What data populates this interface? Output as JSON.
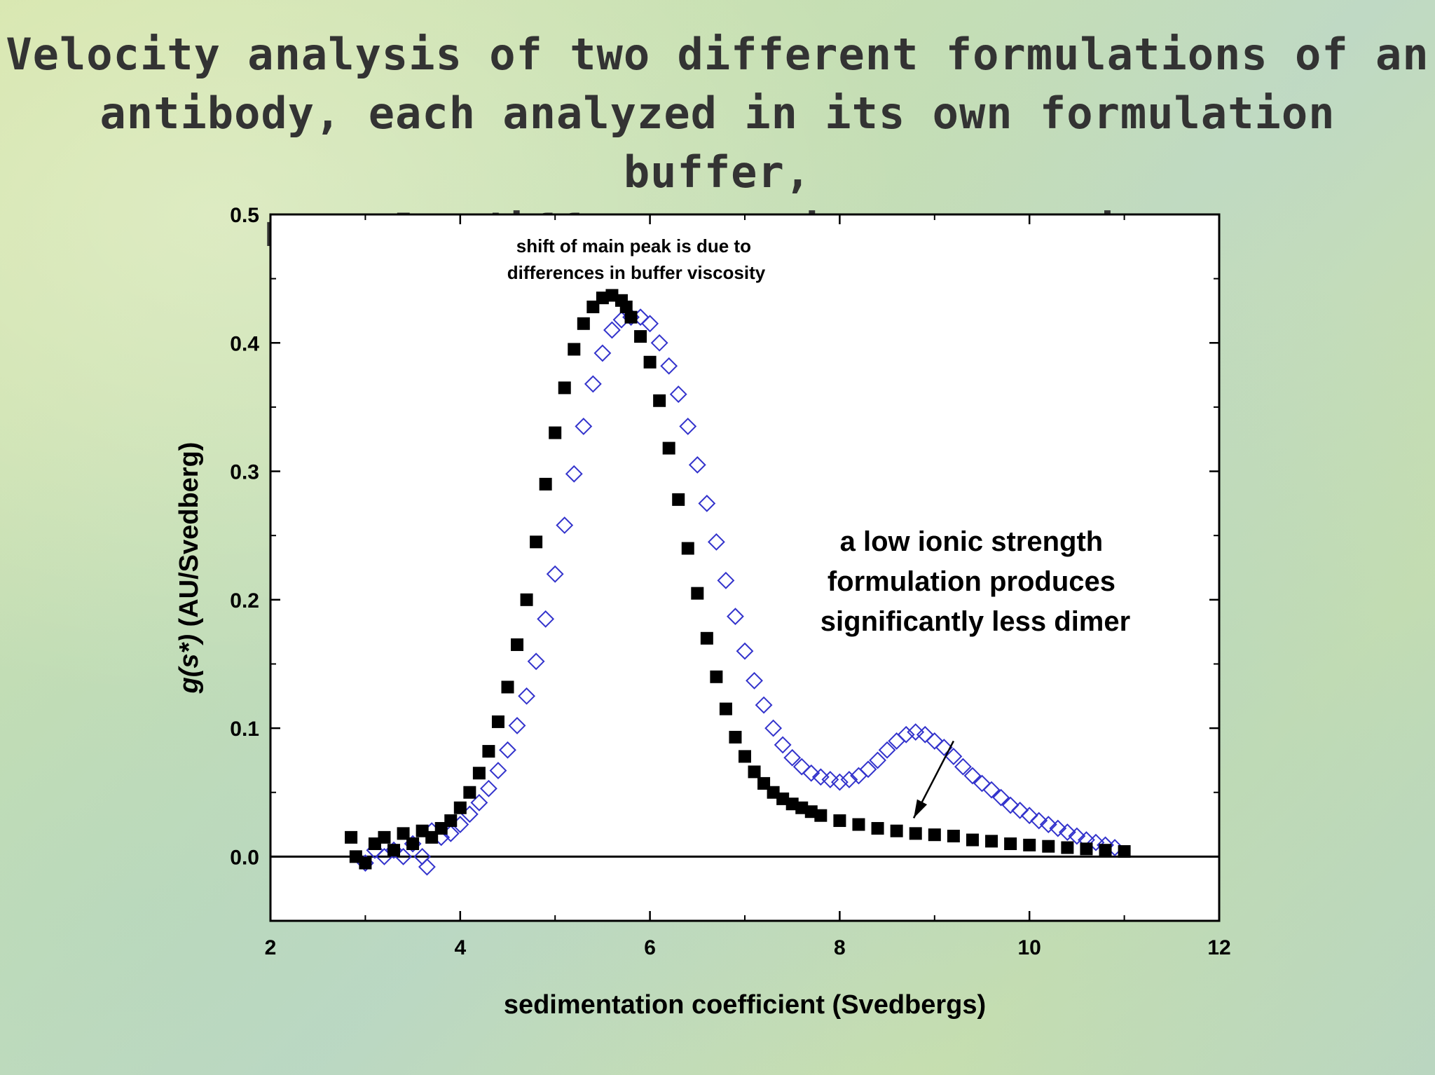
{
  "slide": {
    "title_lines": [
      "Velocity analysis of two different formulations of an",
      "antibody, each analyzed in its own formulation buffer,",
      "reveals differences in aggregation"
    ]
  },
  "chart_data": {
    "type": "scatter",
    "xlabel": "sedimentation coefficient (Svedbergs)",
    "ylabel_parts": [
      "g(s*)",
      " (AU/Svedberg)"
    ],
    "xlim": [
      2,
      12
    ],
    "ylim": [
      -0.05,
      0.5
    ],
    "x_ticks": [
      "2",
      "4",
      "6",
      "8",
      "10",
      "12"
    ],
    "y_ticks": [
      "0.0",
      "0.1",
      "0.2",
      "0.3",
      "0.4",
      "0.5"
    ],
    "x_tick_values": [
      2,
      4,
      6,
      8,
      10,
      12
    ],
    "y_tick_values": [
      0,
      0.1,
      0.2,
      0.3,
      0.4,
      0.5
    ],
    "zero_line": 0,
    "colors": {
      "filled_series": "#000000",
      "open_series": "#3333cc"
    },
    "annotations": {
      "peak_note": [
        "shift of main peak is due to",
        "differences in buffer viscosity"
      ],
      "dimer_note": [
        "a low ionic strength",
        "formulation produces",
        "significantly less dimer"
      ],
      "arrow": {
        "from": [
          9.2,
          0.09
        ],
        "to": [
          8.78,
          0.03
        ]
      }
    },
    "series": [
      {
        "marker": "filled-square",
        "x": [
          2.85,
          2.9,
          3.0,
          3.1,
          3.2,
          3.3,
          3.4,
          3.5,
          3.6,
          3.7,
          3.8,
          3.9,
          4.0,
          4.1,
          4.2,
          4.3,
          4.4,
          4.5,
          4.6,
          4.7,
          4.8,
          4.9,
          5.0,
          5.1,
          5.2,
          5.3,
          5.4,
          5.5,
          5.6,
          5.7,
          5.75,
          5.8,
          5.9,
          6.0,
          6.1,
          6.2,
          6.3,
          6.4,
          6.5,
          6.6,
          6.7,
          6.8,
          6.9,
          7.0,
          7.1,
          7.2,
          7.3,
          7.4,
          7.5,
          7.6,
          7.7,
          7.8,
          8.0,
          8.2,
          8.4,
          8.6,
          8.8,
          9.0,
          9.2,
          9.4,
          9.6,
          9.8,
          10.0,
          10.2,
          10.4,
          10.6,
          10.8,
          11.0
        ],
        "y": [
          0.015,
          0.0,
          -0.005,
          0.01,
          0.015,
          0.005,
          0.018,
          0.01,
          0.02,
          0.015,
          0.022,
          0.028,
          0.038,
          0.05,
          0.065,
          0.082,
          0.105,
          0.132,
          0.165,
          0.2,
          0.245,
          0.29,
          0.33,
          0.365,
          0.395,
          0.415,
          0.428,
          0.435,
          0.437,
          0.433,
          0.428,
          0.42,
          0.405,
          0.385,
          0.355,
          0.318,
          0.278,
          0.24,
          0.205,
          0.17,
          0.14,
          0.115,
          0.093,
          0.078,
          0.066,
          0.057,
          0.05,
          0.045,
          0.041,
          0.038,
          0.035,
          0.032,
          0.028,
          0.025,
          0.022,
          0.02,
          0.018,
          0.017,
          0.016,
          0.013,
          0.012,
          0.01,
          0.009,
          0.008,
          0.007,
          0.006,
          0.005,
          0.004
        ]
      },
      {
        "marker": "open-diamond",
        "x": [
          3.0,
          3.1,
          3.2,
          3.3,
          3.4,
          3.5,
          3.6,
          3.65,
          3.7,
          3.8,
          3.9,
          4.0,
          4.1,
          4.2,
          4.3,
          4.4,
          4.5,
          4.6,
          4.7,
          4.8,
          4.9,
          5.0,
          5.1,
          5.2,
          5.3,
          5.4,
          5.5,
          5.6,
          5.7,
          5.8,
          5.9,
          6.0,
          6.1,
          6.2,
          6.3,
          6.4,
          6.5,
          6.6,
          6.7,
          6.8,
          6.9,
          7.0,
          7.1,
          7.2,
          7.3,
          7.4,
          7.5,
          7.6,
          7.7,
          7.8,
          7.9,
          8.0,
          8.1,
          8.2,
          8.3,
          8.4,
          8.5,
          8.6,
          8.7,
          8.8,
          8.9,
          9.0,
          9.1,
          9.2,
          9.3,
          9.4,
          9.5,
          9.6,
          9.7,
          9.8,
          9.9,
          10.0,
          10.1,
          10.2,
          10.3,
          10.4,
          10.5,
          10.6,
          10.7,
          10.8,
          10.9
        ],
        "y": [
          -0.005,
          0.005,
          0.0,
          0.005,
          0.0,
          0.01,
          0.0,
          -0.008,
          0.02,
          0.015,
          0.018,
          0.025,
          0.033,
          0.042,
          0.053,
          0.067,
          0.083,
          0.102,
          0.125,
          0.152,
          0.185,
          0.22,
          0.258,
          0.298,
          0.335,
          0.368,
          0.392,
          0.41,
          0.418,
          0.42,
          0.42,
          0.415,
          0.4,
          0.382,
          0.36,
          0.335,
          0.305,
          0.275,
          0.245,
          0.215,
          0.187,
          0.16,
          0.137,
          0.118,
          0.1,
          0.087,
          0.077,
          0.07,
          0.065,
          0.062,
          0.06,
          0.058,
          0.06,
          0.063,
          0.068,
          0.075,
          0.083,
          0.09,
          0.095,
          0.097,
          0.095,
          0.09,
          0.085,
          0.078,
          0.07,
          0.063,
          0.057,
          0.052,
          0.046,
          0.04,
          0.036,
          0.032,
          0.028,
          0.025,
          0.022,
          0.019,
          0.016,
          0.013,
          0.011,
          0.009,
          0.007
        ]
      }
    ]
  }
}
